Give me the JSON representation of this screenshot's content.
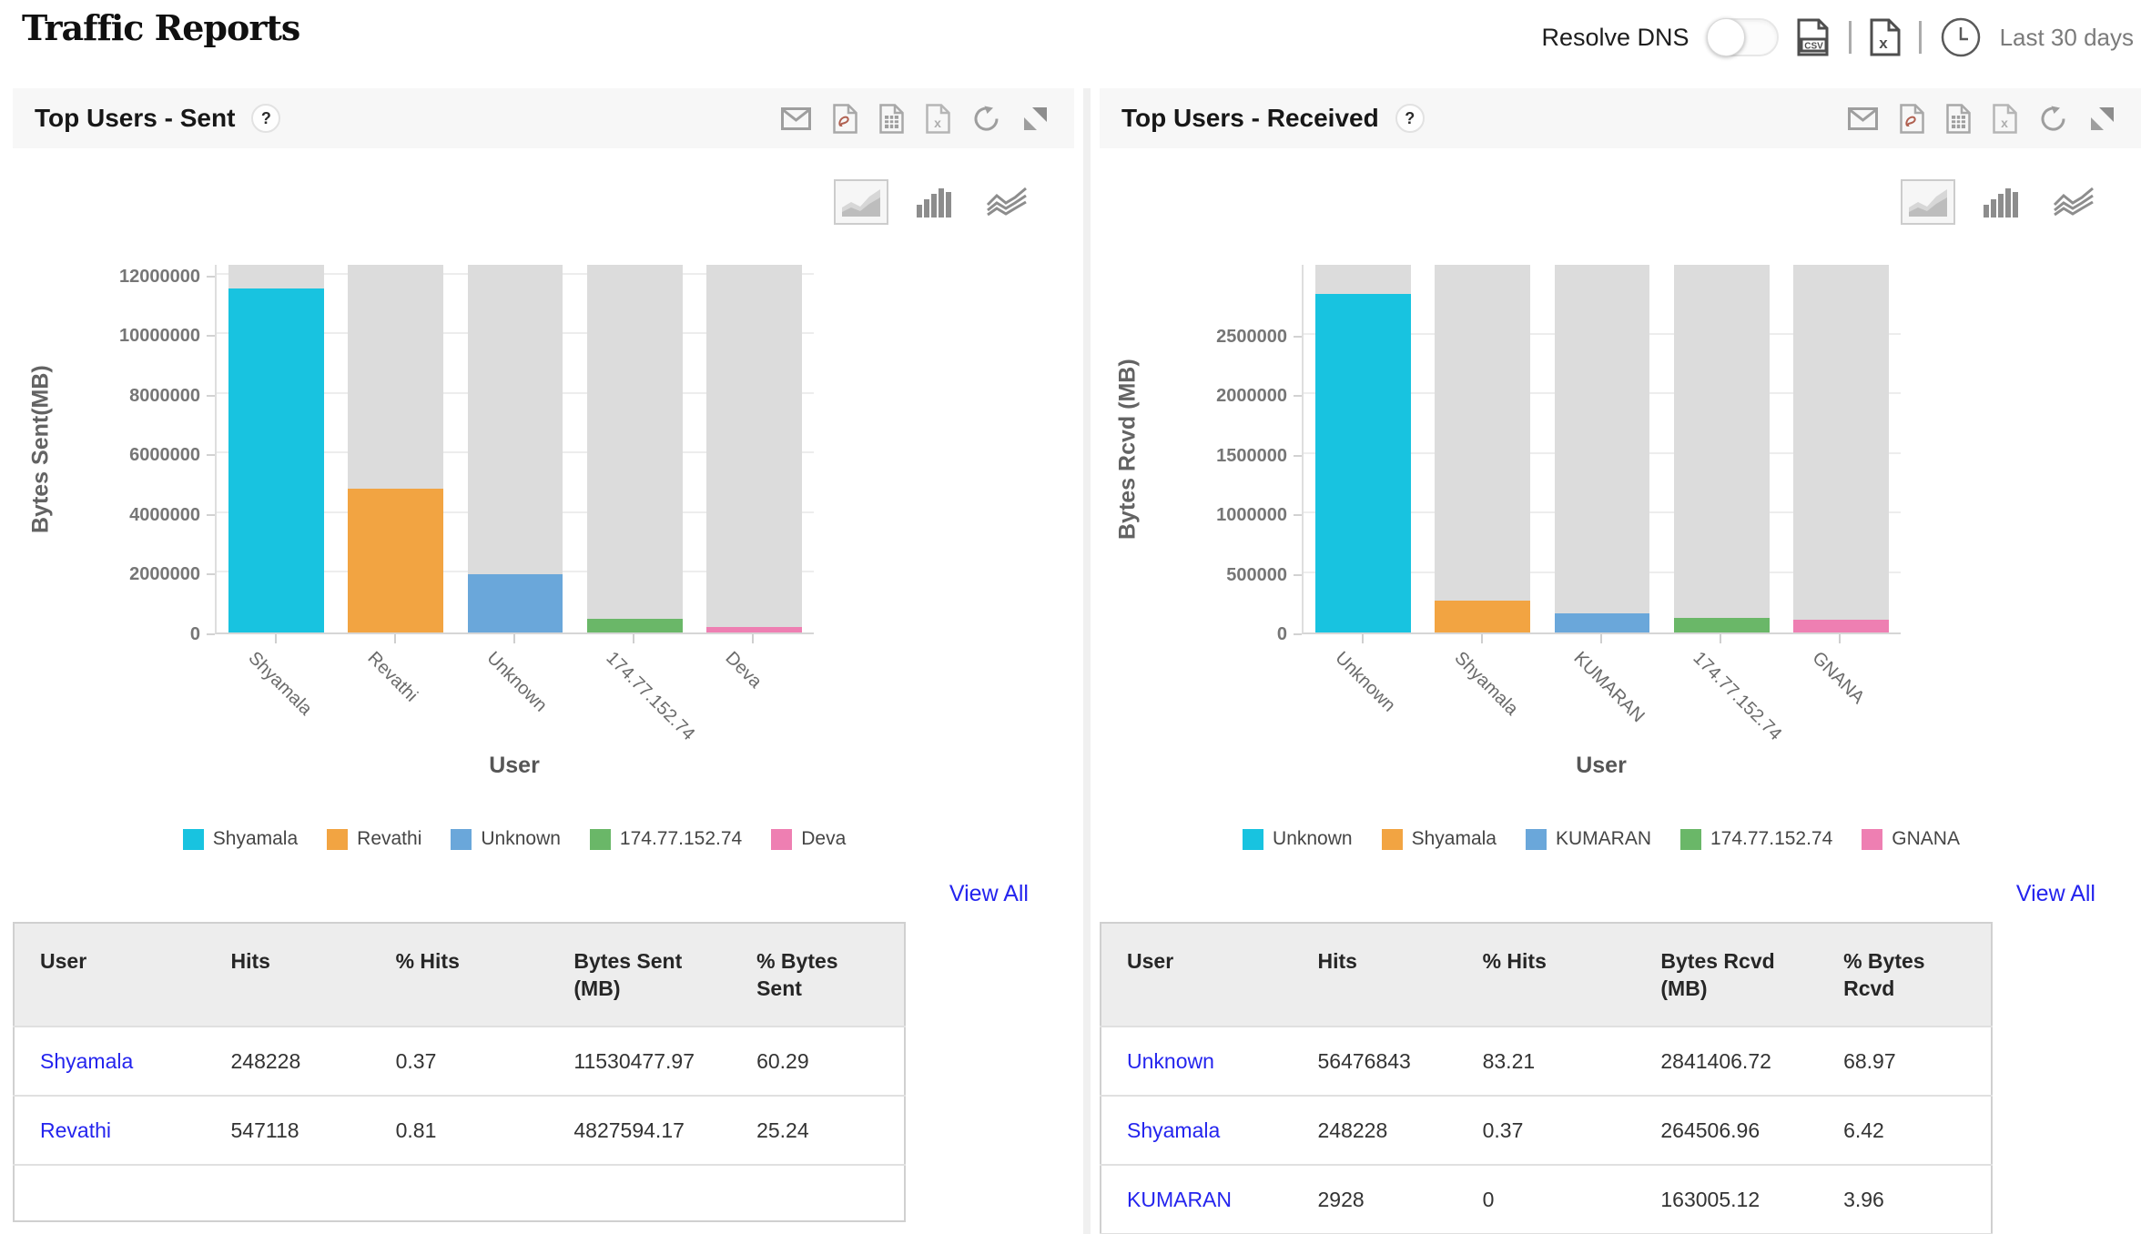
{
  "header": {
    "title": "Traffic Reports",
    "resolve_dns_label": "Resolve DNS",
    "resolve_dns_state": "off",
    "export_icons": [
      "csv-export-icon",
      "xls-export-icon"
    ],
    "time_range_icon": "clock-icon",
    "time_range": "Last 30 days"
  },
  "colors": {
    "series": [
      "#18c3e0",
      "#f2a442",
      "#6aa7da",
      "#6ab768",
      "#ee7fb2"
    ],
    "track": "#dcdcdc",
    "gridline": "#ededed",
    "link": "#2424ee",
    "panel_header_bg": "#f7f7f7",
    "axis_text": "#767676"
  },
  "panels": [
    {
      "title": "Top Users - Sent",
      "help_icon": "?",
      "toolbar_icons": [
        "email-icon",
        "pdf-export-icon",
        "spreadsheet-export-icon",
        "excel-export-icon",
        "refresh-icon",
        "expand-icon"
      ],
      "chart_type_icons": [
        "area-chart-icon",
        "bar-chart-icon",
        "line-chart-icon"
      ],
      "selected_chart_type": "area-chart-icon",
      "view_all_label": "View All",
      "chart_data": {
        "type": "bar",
        "title": "Top Users - Sent",
        "categories": [
          "Shyamala",
          "Revathi",
          "Unknown",
          "174.77.152.74",
          "Deva"
        ],
        "values": [
          11530477.97,
          4827594.17,
          1940000,
          450000,
          180000
        ],
        "xlabel": "User",
        "ylabel": "Bytes Sent(MB)",
        "yticks": [
          0,
          2000000,
          4000000,
          6000000,
          8000000,
          10000000,
          12000000
        ],
        "ylim": [
          0,
          12330000
        ],
        "grid": true,
        "track_bars": true,
        "legend": [
          "Shyamala",
          "Revathi",
          "Unknown",
          "174.77.152.74",
          "Deva"
        ],
        "legend_position": "bottom"
      },
      "table": {
        "columns": [
          "User",
          "Hits",
          "% Hits",
          "Bytes Sent(MB)",
          "% Bytes Sent"
        ],
        "rows": [
          [
            "Shyamala",
            "248228",
            "0.37",
            "11530477.97",
            "60.29"
          ],
          [
            "Revathi",
            "547118",
            "0.81",
            "4827594.17",
            "25.24"
          ]
        ]
      }
    },
    {
      "title": "Top Users - Received",
      "help_icon": "?",
      "toolbar_icons": [
        "email-icon",
        "pdf-export-icon",
        "spreadsheet-export-icon",
        "excel-export-icon",
        "refresh-icon",
        "expand-icon"
      ],
      "chart_type_icons": [
        "area-chart-icon",
        "bar-chart-icon",
        "line-chart-icon"
      ],
      "selected_chart_type": "area-chart-icon",
      "view_all_label": "View All",
      "chart_data": {
        "type": "bar",
        "title": "Top Users - Received",
        "categories": [
          "Unknown",
          "Shyamala",
          "KUMARAN",
          "174.77.152.74",
          "GNANA"
        ],
        "values": [
          2841406.72,
          264506.96,
          163005.12,
          125000,
          108000
        ],
        "xlabel": "User",
        "ylabel": "Bytes Rcvd (MB)",
        "yticks": [
          0,
          500000,
          1000000,
          1500000,
          2000000,
          2500000
        ],
        "ylim": [
          0,
          3085000
        ],
        "grid": true,
        "track_bars": true,
        "legend": [
          "Unknown",
          "Shyamala",
          "KUMARAN",
          "174.77.152.74",
          "GNANA"
        ],
        "legend_position": "bottom"
      },
      "table": {
        "columns": [
          "User",
          "Hits",
          "% Hits",
          "Bytes Rcvd (MB)",
          "% Bytes Rcvd"
        ],
        "rows": [
          [
            "Unknown",
            "56476843",
            "83.21",
            "2841406.72",
            "68.97"
          ],
          [
            "Shyamala",
            "248228",
            "0.37",
            "264506.96",
            "6.42"
          ],
          [
            "KUMARAN",
            "2928",
            "0",
            "163005.12",
            "3.96"
          ]
        ]
      }
    }
  ]
}
